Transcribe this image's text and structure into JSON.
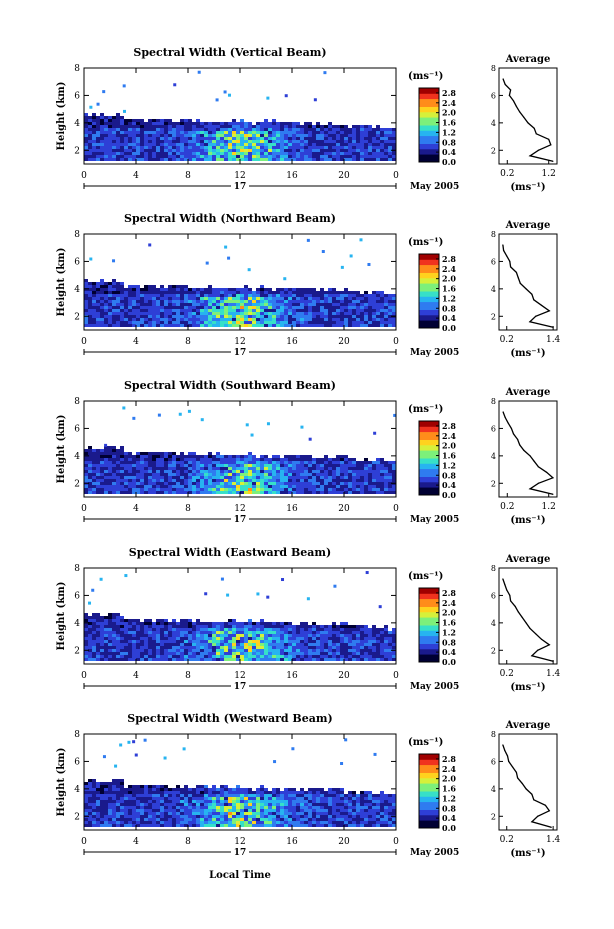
{
  "figure": {
    "x_axis_label": "Local Time",
    "date_label": "May 2005",
    "day_label": "17"
  },
  "chart_data": [
    {
      "type": "heatmap",
      "title": "Spectral Width (Vertical Beam)",
      "ylabel": "Height (km)",
      "xlabel": "",
      "x_ticks": [
        "0",
        "4",
        "8",
        "12",
        "16",
        "20",
        "0"
      ],
      "y_ticks": [
        "2",
        "4",
        "6",
        "8"
      ],
      "xlim": [
        0,
        24
      ],
      "ylim": [
        1,
        8
      ],
      "colorbar": {
        "unit": "(ms⁻¹)",
        "ticks": [
          "0.0",
          "0.4",
          "0.8",
          "1.2",
          "1.6",
          "2.0",
          "2.4",
          "2.8"
        ],
        "range": [
          0,
          3.0
        ]
      },
      "profile": {
        "title": "Average",
        "xlabel": "(ms⁻¹)",
        "x_ticks": [
          "0.2",
          "1.2"
        ],
        "xlim": [
          0.0,
          1.4
        ],
        "y_ticks": [
          "2",
          "4",
          "6",
          "8"
        ],
        "ylim": [
          1,
          8
        ],
        "heights": [
          1.2,
          1.6,
          2.0,
          2.4,
          2.8,
          3.2,
          3.6,
          4.0,
          4.4,
          4.8,
          5.2,
          5.6,
          6.0,
          6.4,
          6.8,
          7.2
        ],
        "values": [
          1.3,
          0.75,
          0.95,
          1.25,
          1.2,
          0.9,
          0.85,
          0.7,
          0.6,
          0.5,
          0.42,
          0.35,
          0.25,
          0.28,
          0.15,
          0.1
        ]
      }
    },
    {
      "type": "heatmap",
      "title": "Spectral Width (Northward Beam)",
      "ylabel": "Height (km)",
      "xlabel": "",
      "x_ticks": [
        "0",
        "4",
        "8",
        "12",
        "16",
        "20",
        "0"
      ],
      "y_ticks": [
        "2",
        "4",
        "6",
        "8"
      ],
      "xlim": [
        0,
        24
      ],
      "ylim": [
        1,
        8
      ],
      "colorbar": {
        "unit": "(ms⁻¹)",
        "ticks": [
          "0.0",
          "0.4",
          "0.8",
          "1.2",
          "1.6",
          "2.0",
          "2.4",
          "2.8"
        ],
        "range": [
          0,
          3.0
        ]
      },
      "profile": {
        "title": "Average",
        "xlabel": "(ms⁻¹)",
        "x_ticks": [
          "0.2",
          "1.4"
        ],
        "xlim": [
          0.0,
          1.5
        ],
        "y_ticks": [
          "2",
          "4",
          "6",
          "8"
        ],
        "ylim": [
          1,
          8
        ],
        "heights": [
          1.2,
          1.6,
          2.0,
          2.4,
          2.8,
          3.2,
          3.6,
          4.0,
          4.4,
          4.8,
          5.2,
          5.6,
          6.0,
          6.4,
          6.8,
          7.2
        ],
        "values": [
          1.4,
          0.8,
          0.95,
          1.3,
          1.1,
          0.9,
          0.85,
          0.7,
          0.55,
          0.5,
          0.45,
          0.3,
          0.28,
          0.2,
          0.12,
          0.1
        ]
      }
    },
    {
      "type": "heatmap",
      "title": "Spectral Width (Southward Beam)",
      "ylabel": "Height (km)",
      "xlabel": "",
      "x_ticks": [
        "0",
        "4",
        "8",
        "12",
        "16",
        "20",
        "0"
      ],
      "y_ticks": [
        "2",
        "4",
        "6",
        "8"
      ],
      "xlim": [
        0,
        24
      ],
      "ylim": [
        1,
        8
      ],
      "colorbar": {
        "unit": "(ms⁻¹)",
        "ticks": [
          "0.0",
          "0.4",
          "0.8",
          "1.2",
          "1.6",
          "2.0",
          "2.4",
          "2.8"
        ],
        "range": [
          0,
          3.0
        ]
      },
      "profile": {
        "title": "Average",
        "xlabel": "(ms⁻¹)",
        "x_ticks": [
          "0.2",
          "1.2"
        ],
        "xlim": [
          0.0,
          1.4
        ],
        "y_ticks": [
          "2",
          "4",
          "6",
          "8"
        ],
        "ylim": [
          1,
          8
        ],
        "heights": [
          1.2,
          1.6,
          2.0,
          2.4,
          2.8,
          3.2,
          3.6,
          4.0,
          4.4,
          4.8,
          5.2,
          5.6,
          6.0,
          6.4,
          6.8,
          7.2
        ],
        "values": [
          1.3,
          0.75,
          0.95,
          1.3,
          1.15,
          0.95,
          0.85,
          0.75,
          0.6,
          0.5,
          0.45,
          0.35,
          0.3,
          0.22,
          0.15,
          0.1
        ]
      }
    },
    {
      "type": "heatmap",
      "title": "Spectral Width (Eastward Beam)",
      "ylabel": "Height (km)",
      "xlabel": "",
      "x_ticks": [
        "0",
        "4",
        "8",
        "12",
        "16",
        "20",
        "0"
      ],
      "y_ticks": [
        "2",
        "4",
        "6",
        "8"
      ],
      "xlim": [
        0,
        24
      ],
      "ylim": [
        1,
        8
      ],
      "colorbar": {
        "unit": "(ms⁻¹)",
        "ticks": [
          "0.0",
          "0.4",
          "0.8",
          "1.2",
          "1.6",
          "2.0",
          "2.4",
          "2.8"
        ],
        "range": [
          0,
          3.0
        ]
      },
      "profile": {
        "title": "Average",
        "xlabel": "(ms⁻¹)",
        "x_ticks": [
          "0.2",
          "1.4"
        ],
        "xlim": [
          0.0,
          1.5
        ],
        "y_ticks": [
          "2",
          "4",
          "6",
          "8"
        ],
        "ylim": [
          1,
          8
        ],
        "heights": [
          1.2,
          1.6,
          2.0,
          2.4,
          2.8,
          3.2,
          3.6,
          4.0,
          4.4,
          4.8,
          5.2,
          5.6,
          6.0,
          6.4,
          6.8,
          7.2
        ],
        "values": [
          1.4,
          0.85,
          1.0,
          1.3,
          1.1,
          0.95,
          0.8,
          0.7,
          0.6,
          0.5,
          0.42,
          0.3,
          0.28,
          0.2,
          0.15,
          0.1
        ]
      }
    },
    {
      "type": "heatmap",
      "title": "Spectral Width (Westward Beam)",
      "ylabel": "Height (km)",
      "xlabel": "",
      "x_ticks": [
        "0",
        "4",
        "8",
        "12",
        "16",
        "20",
        "0"
      ],
      "y_ticks": [
        "2",
        "4",
        "6",
        "8"
      ],
      "xlim": [
        0,
        24
      ],
      "ylim": [
        1,
        8
      ],
      "colorbar": {
        "unit": "(ms⁻¹)",
        "ticks": [
          "0.0",
          "0.4",
          "0.8",
          "1.2",
          "1.6",
          "2.0",
          "2.4",
          "2.8"
        ],
        "range": [
          0,
          3.0
        ]
      },
      "profile": {
        "title": "Average",
        "xlabel": "(ms⁻¹)",
        "x_ticks": [
          "0.2",
          "1.4"
        ],
        "xlim": [
          0.0,
          1.5
        ],
        "y_ticks": [
          "2",
          "4",
          "6",
          "8"
        ],
        "ylim": [
          1,
          8
        ],
        "heights": [
          1.2,
          1.6,
          2.0,
          2.4,
          2.8,
          3.2,
          3.6,
          4.0,
          4.4,
          4.8,
          5.2,
          5.6,
          6.0,
          6.4,
          6.8,
          7.2
        ],
        "values": [
          1.35,
          0.85,
          1.0,
          1.3,
          1.2,
          0.9,
          0.85,
          0.7,
          0.6,
          0.48,
          0.45,
          0.35,
          0.25,
          0.22,
          0.15,
          0.1
        ]
      }
    }
  ],
  "colors": {
    "colormap": [
      "#000033",
      "#1a1a8c",
      "#2e3fd6",
      "#2f7bf0",
      "#27b4f0",
      "#37e0c8",
      "#7df07a",
      "#d6f03a",
      "#ffd21e",
      "#ff8c1a",
      "#f0321e",
      "#a00000"
    ],
    "axis": "#000000"
  }
}
